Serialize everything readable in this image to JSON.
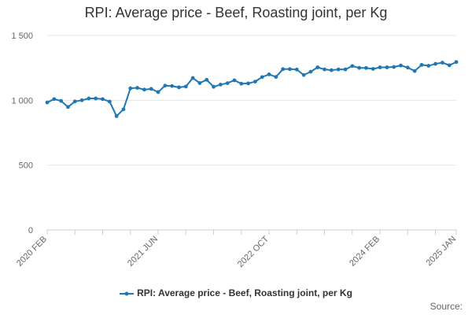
{
  "chart_data": {
    "type": "line",
    "title": "RPI: Average price - Beef, Roasting joint, per Kg",
    "xlabel": "",
    "ylabel": "",
    "ylim": [
      0,
      1500
    ],
    "yticks": [
      0,
      500,
      1000,
      1500
    ],
    "ytick_labels": [
      "0",
      "500",
      "1 000",
      "1 500"
    ],
    "xtick_labels": [
      "2020 FEB",
      "2021 JUN",
      "2022 OCT",
      "2024 FEB",
      "2025 JAN"
    ],
    "xtick_index": [
      0,
      16,
      32,
      48,
      59
    ],
    "grid": true,
    "legend_position": "bottom",
    "series": [
      {
        "name": "RPI: Average price - Beef, Roasting joint, per Kg",
        "color": "#1f77b4",
        "values": [
          983,
          1009,
          995,
          948,
          991,
          1000,
          1014,
          1014,
          1009,
          990,
          878,
          930,
          1092,
          1096,
          1082,
          1088,
          1063,
          1113,
          1110,
          1100,
          1106,
          1172,
          1133,
          1158,
          1104,
          1121,
          1132,
          1154,
          1128,
          1130,
          1144,
          1179,
          1200,
          1180,
          1240,
          1240,
          1237,
          1195,
          1220,
          1254,
          1238,
          1232,
          1238,
          1238,
          1264,
          1250,
          1249,
          1242,
          1254,
          1254,
          1257,
          1268,
          1252,
          1226,
          1273,
          1266,
          1281,
          1290,
          1270,
          1295
        ]
      }
    ]
  },
  "legend": {
    "label": "RPI: Average price - Beef, Roasting joint, per Kg"
  },
  "source_label": "Source:"
}
